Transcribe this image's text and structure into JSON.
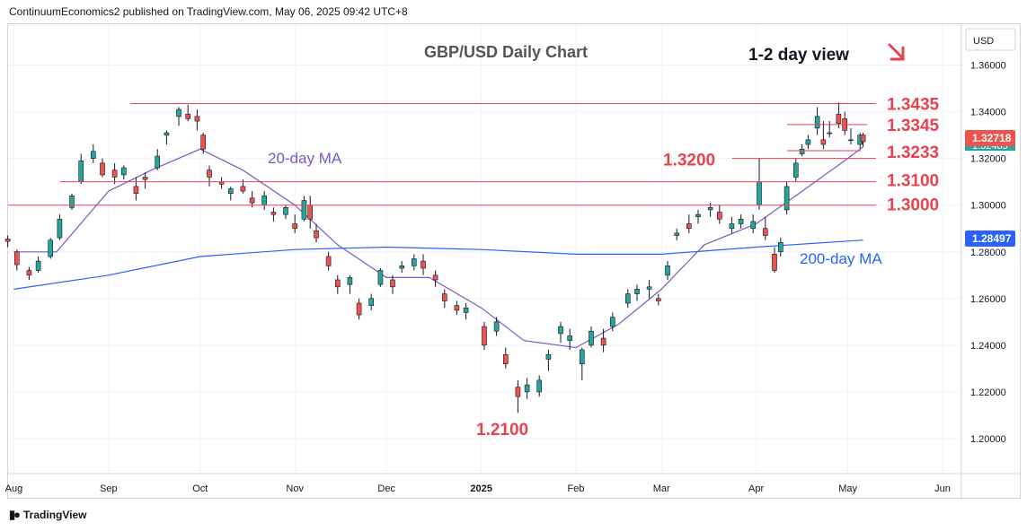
{
  "header": {
    "publisher_line": "ContinuumEconomics2 published on TradingView.com, May 06, 2025 09:42 UTC+8"
  },
  "footer": {
    "brand_icon": "tradingview-logo-icon",
    "brand": "TradingView"
  },
  "colors": {
    "up_candle": "#26a69a",
    "down_candle": "#ef5350",
    "line_ma20": "#7e57c2",
    "line_ma200": "#2962ff",
    "levels": "#e8424f",
    "arrow": "#e8424f"
  },
  "chart_data": {
    "type": "candlestick",
    "title": "GBP/USD Daily Chart",
    "subtitle": "1-2 day view",
    "currency_label": "USD",
    "grid": true,
    "y_axis": {
      "ticks": [
        "1.36000",
        "1.34000",
        "1.32000",
        "1.30000",
        "1.28000",
        "1.26000",
        "1.24000",
        "1.22000",
        "1.20000"
      ],
      "range": [
        1.185,
        1.3775
      ]
    },
    "x_axis": {
      "ticks": [
        "Aug",
        "Sep",
        "Oct",
        "Nov",
        "Dec",
        "2025",
        "Feb",
        "Mar",
        "Apr",
        "May",
        "Jun"
      ]
    },
    "price_tags": {
      "last": "1.32718",
      "hidden": "1.32485",
      "ma200": "1.28497"
    },
    "series": [
      {
        "name": "20-day MA",
        "label": "20-day MA"
      },
      {
        "name": "200-day MA",
        "label": "200-day MA"
      }
    ],
    "levels": [
      {
        "label": "1.3435",
        "value": 1.3435
      },
      {
        "label": "1.3345",
        "value": 1.3345
      },
      {
        "label": "1.3233",
        "value": 1.3233
      },
      {
        "label": "1.3200",
        "value": 1.32
      },
      {
        "label": "1.3100",
        "value": 1.31
      },
      {
        "label": "1.3000",
        "value": 1.3
      }
    ],
    "low_label": "1.2100",
    "ma20_points": [
      [
        "2024-08-01",
        1.28
      ],
      [
        "2024-08-15",
        1.28
      ],
      [
        "2024-09-01",
        1.306
      ],
      [
        "2024-09-15",
        1.315
      ],
      [
        "2024-10-01",
        1.324
      ],
      [
        "2024-10-15",
        1.315
      ],
      [
        "2024-11-01",
        1.3
      ],
      [
        "2024-11-15",
        1.283
      ],
      [
        "2024-12-01",
        1.269
      ],
      [
        "2024-12-15",
        1.269
      ],
      [
        "2025-01-01",
        1.256
      ],
      [
        "2025-01-15",
        1.242
      ],
      [
        "2025-02-01",
        1.239
      ],
      [
        "2025-02-15",
        1.249
      ],
      [
        "2025-03-01",
        1.264
      ],
      [
        "2025-03-15",
        1.283
      ],
      [
        "2025-04-01",
        1.292
      ],
      [
        "2025-04-15",
        1.305
      ],
      [
        "2025-05-01",
        1.32
      ],
      [
        "2025-05-06",
        1.325
      ]
    ],
    "ma200_points": [
      [
        "2024-08-01",
        1.264
      ],
      [
        "2024-09-01",
        1.27
      ],
      [
        "2024-10-01",
        1.278
      ],
      [
        "2024-11-01",
        1.281
      ],
      [
        "2024-12-01",
        1.282
      ],
      [
        "2025-01-01",
        1.281
      ],
      [
        "2025-02-01",
        1.279
      ],
      [
        "2025-03-01",
        1.279
      ],
      [
        "2025-04-01",
        1.282
      ],
      [
        "2025-05-06",
        1.285
      ]
    ],
    "ohlc": [
      [
        "2024-07-30",
        1.2855,
        1.287,
        1.282,
        1.2845
      ],
      [
        "2024-08-02",
        1.28,
        1.281,
        1.272,
        1.2745
      ],
      [
        "2024-08-06",
        1.272,
        1.2735,
        1.268,
        1.27
      ],
      [
        "2024-08-09",
        1.272,
        1.278,
        1.271,
        1.276
      ],
      [
        "2024-08-13",
        1.278,
        1.286,
        1.277,
        1.285
      ],
      [
        "2024-08-16",
        1.286,
        1.296,
        1.285,
        1.294
      ],
      [
        "2024-08-20",
        1.299,
        1.305,
        1.298,
        1.304
      ],
      [
        "2024-08-23",
        1.31,
        1.322,
        1.309,
        1.319
      ],
      [
        "2024-08-27",
        1.32,
        1.326,
        1.318,
        1.323
      ],
      [
        "2024-08-30",
        1.318,
        1.32,
        1.312,
        1.313
      ],
      [
        "2024-09-03",
        1.315,
        1.318,
        1.309,
        1.312
      ],
      [
        "2024-09-06",
        1.313,
        1.317,
        1.311,
        1.316
      ],
      [
        "2024-09-10",
        1.308,
        1.312,
        1.302,
        1.305
      ],
      [
        "2024-09-13",
        1.312,
        1.314,
        1.307,
        1.311
      ],
      [
        "2024-09-17",
        1.316,
        1.324,
        1.315,
        1.321
      ],
      [
        "2024-09-20",
        1.33,
        1.332,
        1.326,
        1.331
      ],
      [
        "2024-09-24",
        1.338,
        1.342,
        1.334,
        1.341
      ],
      [
        "2024-09-27",
        1.339,
        1.343,
        1.336,
        1.337
      ],
      [
        "2024-09-30",
        1.338,
        1.341,
        1.332,
        1.336
      ],
      [
        "2024-10-02",
        1.33,
        1.331,
        1.322,
        1.324
      ],
      [
        "2024-10-04",
        1.315,
        1.317,
        1.308,
        1.312
      ],
      [
        "2024-10-08",
        1.31,
        1.312,
        1.307,
        1.309
      ],
      [
        "2024-10-11",
        1.305,
        1.308,
        1.302,
        1.307
      ],
      [
        "2024-10-15",
        1.308,
        1.311,
        1.305,
        1.306
      ],
      [
        "2024-10-18",
        1.303,
        1.306,
        1.299,
        1.301
      ],
      [
        "2024-10-22",
        1.3,
        1.306,
        1.298,
        1.304
      ],
      [
        "2024-10-25",
        1.297,
        1.299,
        1.293,
        1.296
      ],
      [
        "2024-10-29",
        1.296,
        1.3,
        1.294,
        1.299
      ],
      [
        "2024-11-01",
        1.292,
        1.296,
        1.288,
        1.29
      ],
      [
        "2024-11-04",
        1.294,
        1.304,
        1.293,
        1.302
      ],
      [
        "2024-11-06",
        1.3,
        1.304,
        1.29,
        1.294
      ],
      [
        "2024-11-08",
        1.289,
        1.292,
        1.284,
        1.286
      ],
      [
        "2024-11-12",
        1.278,
        1.28,
        1.272,
        1.274
      ],
      [
        "2024-11-15",
        1.268,
        1.27,
        1.262,
        1.265
      ],
      [
        "2024-11-19",
        1.266,
        1.27,
        1.262,
        1.269
      ],
      [
        "2024-11-22",
        1.258,
        1.26,
        1.251,
        1.253
      ],
      [
        "2024-11-26",
        1.257,
        1.262,
        1.255,
        1.26
      ],
      [
        "2024-11-29",
        1.266,
        1.273,
        1.265,
        1.272
      ],
      [
        "2024-12-03",
        1.268,
        1.27,
        1.262,
        1.265
      ],
      [
        "2024-12-06",
        1.273,
        1.276,
        1.271,
        1.274
      ],
      [
        "2024-12-10",
        1.274,
        1.279,
        1.272,
        1.277
      ],
      [
        "2024-12-13",
        1.276,
        1.279,
        1.27,
        1.273
      ],
      [
        "2024-12-17",
        1.27,
        1.272,
        1.265,
        1.268
      ],
      [
        "2024-12-20",
        1.262,
        1.264,
        1.256,
        1.259
      ],
      [
        "2024-12-24",
        1.257,
        1.259,
        1.253,
        1.255
      ],
      [
        "2024-12-27",
        1.254,
        1.258,
        1.251,
        1.256
      ],
      [
        "2025-01-02",
        1.248,
        1.25,
        1.238,
        1.24
      ],
      [
        "2025-01-06",
        1.246,
        1.252,
        1.244,
        1.25
      ],
      [
        "2025-01-09",
        1.236,
        1.239,
        1.23,
        1.232
      ],
      [
        "2025-01-13",
        1.222,
        1.225,
        1.211,
        1.218
      ],
      [
        "2025-01-16",
        1.22,
        1.226,
        1.217,
        1.223
      ],
      [
        "2025-01-20",
        1.22,
        1.227,
        1.218,
        1.225
      ],
      [
        "2025-01-23",
        1.234,
        1.238,
        1.229,
        1.236
      ],
      [
        "2025-01-27",
        1.245,
        1.25,
        1.241,
        1.248
      ],
      [
        "2025-01-30",
        1.242,
        1.247,
        1.238,
        1.244
      ],
      [
        "2025-02-03",
        1.232,
        1.239,
        1.225,
        1.238
      ],
      [
        "2025-02-06",
        1.24,
        1.248,
        1.239,
        1.246
      ],
      [
        "2025-02-10",
        1.243,
        1.247,
        1.237,
        1.24
      ],
      [
        "2025-02-13",
        1.248,
        1.254,
        1.246,
        1.252
      ],
      [
        "2025-02-18",
        1.258,
        1.264,
        1.256,
        1.262
      ],
      [
        "2025-02-21",
        1.262,
        1.266,
        1.259,
        1.264
      ],
      [
        "2025-02-25",
        1.264,
        1.268,
        1.26,
        1.265
      ],
      [
        "2025-02-28",
        1.26,
        1.262,
        1.257,
        1.259
      ],
      [
        "2025-03-03",
        1.27,
        1.276,
        1.268,
        1.274
      ],
      [
        "2025-03-06",
        1.287,
        1.29,
        1.285,
        1.288
      ],
      [
        "2025-03-10",
        1.292,
        1.296,
        1.288,
        1.29
      ],
      [
        "2025-03-13",
        1.295,
        1.298,
        1.292,
        1.296
      ],
      [
        "2025-03-17",
        1.298,
        1.301,
        1.295,
        1.299
      ],
      [
        "2025-03-20",
        1.297,
        1.3,
        1.292,
        1.294
      ],
      [
        "2025-03-24",
        1.29,
        1.295,
        1.288,
        1.292
      ],
      [
        "2025-03-27",
        1.292,
        1.296,
        1.29,
        1.294
      ],
      [
        "2025-03-31",
        1.29,
        1.296,
        1.288,
        1.293
      ],
      [
        "2025-04-02",
        1.3,
        1.32,
        1.298,
        1.31
      ],
      [
        "2025-04-04",
        1.29,
        1.295,
        1.285,
        1.287
      ],
      [
        "2025-04-07",
        1.279,
        1.282,
        1.271,
        1.272
      ],
      [
        "2025-04-09",
        1.28,
        1.286,
        1.278,
        1.284
      ],
      [
        "2025-04-11",
        1.298,
        1.31,
        1.296,
        1.308
      ],
      [
        "2025-04-14",
        1.312,
        1.32,
        1.31,
        1.318
      ],
      [
        "2025-04-16",
        1.322,
        1.326,
        1.321,
        1.324
      ],
      [
        "2025-04-18",
        1.326,
        1.33,
        1.324,
        1.328
      ],
      [
        "2025-04-21",
        1.333,
        1.342,
        1.33,
        1.338
      ],
      [
        "2025-04-23",
        1.328,
        1.336,
        1.324,
        1.326
      ],
      [
        "2025-04-25",
        1.331,
        1.336,
        1.329,
        1.331
      ],
      [
        "2025-04-28",
        1.339,
        1.344,
        1.333,
        1.335
      ],
      [
        "2025-04-30",
        1.337,
        1.34,
        1.33,
        1.332
      ],
      [
        "2025-05-02",
        1.328,
        1.333,
        1.326,
        1.328
      ],
      [
        "2025-05-05",
        1.326,
        1.331,
        1.324,
        1.33
      ],
      [
        "2025-05-06",
        1.33,
        1.331,
        1.325,
        1.3272
      ]
    ]
  }
}
